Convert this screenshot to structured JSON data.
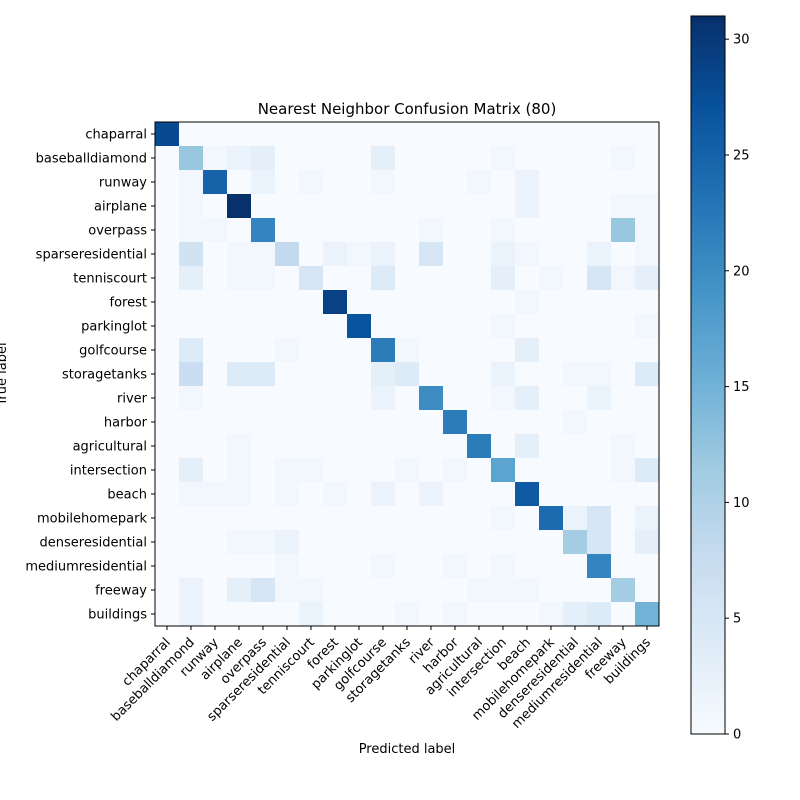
{
  "chart_data": {
    "type": "heatmap",
    "title": "Nearest Neighbor Confusion Matrix (80)",
    "xlabel": "Predicted label",
    "ylabel": "True label",
    "labels": [
      "chaparral",
      "baseballdiamond",
      "runway",
      "airplane",
      "overpass",
      "sparseresidential",
      "tenniscourt",
      "forest",
      "parkinglot",
      "golfcourse",
      "storagetanks",
      "river",
      "harbor",
      "agricultural",
      "intersection",
      "beach",
      "mobilehomepark",
      "denseresidential",
      "mediumresidential",
      "freeway",
      "buildings"
    ],
    "matrix": [
      [
        28,
        0,
        0,
        0,
        0,
        0,
        0,
        0,
        0,
        0,
        0,
        0,
        0,
        0,
        0,
        0,
        0,
        0,
        0,
        0,
        0
      ],
      [
        0,
        12,
        1,
        2,
        3,
        0,
        0,
        0,
        0,
        3,
        0,
        0,
        0,
        0,
        1,
        0,
        0,
        0,
        0,
        1,
        0
      ],
      [
        0,
        1,
        25,
        0,
        2,
        0,
        1,
        0,
        0,
        1,
        0,
        0,
        0,
        1,
        0,
        2,
        0,
        0,
        0,
        0,
        0
      ],
      [
        0,
        1,
        0,
        31,
        0,
        0,
        0,
        0,
        0,
        0,
        0,
        0,
        0,
        0,
        0,
        2,
        0,
        0,
        0,
        1,
        1
      ],
      [
        0,
        1,
        1,
        0,
        21,
        0,
        0,
        0,
        0,
        0,
        0,
        1,
        0,
        0,
        1,
        0,
        0,
        0,
        0,
        12,
        1
      ],
      [
        0,
        6,
        0,
        1,
        1,
        8,
        0,
        2,
        1,
        2,
        0,
        5,
        0,
        0,
        2,
        1,
        0,
        0,
        2,
        0,
        1
      ],
      [
        0,
        3,
        0,
        1,
        1,
        0,
        5,
        0,
        0,
        4,
        0,
        0,
        0,
        0,
        3,
        0,
        1,
        0,
        5,
        1,
        3
      ],
      [
        0,
        0,
        0,
        0,
        0,
        0,
        0,
        29,
        0,
        0,
        0,
        0,
        0,
        0,
        0,
        1,
        0,
        0,
        0,
        0,
        0
      ],
      [
        0,
        0,
        0,
        0,
        0,
        0,
        0,
        0,
        27,
        0,
        0,
        0,
        0,
        0,
        1,
        0,
        0,
        0,
        0,
        0,
        1
      ],
      [
        0,
        4,
        0,
        0,
        0,
        1,
        0,
        0,
        0,
        22,
        1,
        0,
        0,
        0,
        0,
        3,
        0,
        0,
        0,
        0,
        0
      ],
      [
        0,
        7,
        0,
        4,
        4,
        0,
        0,
        0,
        0,
        3,
        4,
        0,
        0,
        0,
        2,
        0,
        0,
        1,
        1,
        0,
        4
      ],
      [
        0,
        1,
        0,
        0,
        0,
        0,
        0,
        0,
        0,
        2,
        0,
        20,
        0,
        0,
        1,
        3,
        0,
        0,
        2,
        0,
        0
      ],
      [
        0,
        0,
        0,
        0,
        0,
        0,
        0,
        0,
        0,
        0,
        0,
        0,
        22,
        0,
        0,
        0,
        0,
        1,
        0,
        0,
        0
      ],
      [
        0,
        0,
        0,
        1,
        0,
        0,
        0,
        0,
        0,
        0,
        0,
        0,
        0,
        22,
        0,
        3,
        0,
        0,
        0,
        1,
        0
      ],
      [
        0,
        3,
        0,
        1,
        0,
        1,
        1,
        0,
        0,
        0,
        1,
        0,
        1,
        0,
        17,
        0,
        0,
        0,
        0,
        1,
        4
      ],
      [
        0,
        1,
        1,
        1,
        0,
        1,
        0,
        1,
        0,
        2,
        0,
        2,
        0,
        0,
        0,
        26,
        0,
        0,
        0,
        0,
        0
      ],
      [
        0,
        0,
        0,
        0,
        0,
        0,
        0,
        0,
        0,
        0,
        0,
        0,
        0,
        0,
        1,
        0,
        24,
        2,
        5,
        0,
        2
      ],
      [
        0,
        0,
        0,
        1,
        1,
        2,
        0,
        0,
        0,
        0,
        0,
        0,
        0,
        0,
        0,
        0,
        0,
        11,
        5,
        0,
        3
      ],
      [
        0,
        0,
        0,
        0,
        0,
        1,
        0,
        0,
        0,
        1,
        0,
        0,
        1,
        0,
        1,
        0,
        0,
        0,
        21,
        0,
        0
      ],
      [
        0,
        2,
        0,
        3,
        5,
        1,
        1,
        0,
        0,
        0,
        0,
        0,
        0,
        1,
        1,
        1,
        0,
        0,
        0,
        11,
        0
      ],
      [
        0,
        2,
        0,
        0,
        0,
        0,
        2,
        0,
        0,
        0,
        1,
        0,
        1,
        0,
        0,
        0,
        1,
        3,
        4,
        0,
        15
      ]
    ],
    "vmin": 0,
    "vmax": 31,
    "colormap": "Blues",
    "colorbar_ticks": [
      0,
      5,
      10,
      15,
      20,
      25,
      30
    ]
  }
}
